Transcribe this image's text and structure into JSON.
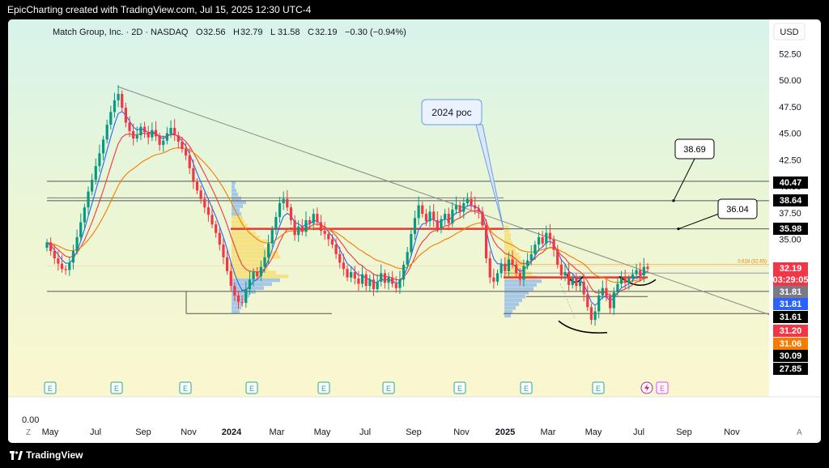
{
  "header": {
    "attribution": "EpicCharting created with TradingView.com, Jul 15, 2025 12:30 UTC-4"
  },
  "footer": {
    "brand": "TradingView"
  },
  "chart_data": {
    "type": "candlestick",
    "title": "Match Group, Inc. · 2D · NASDAQ",
    "ohlc_legend": {
      "o_label": "O",
      "o": "32.56",
      "h_label": "H",
      "h": "32.79",
      "l_label": "L",
      "l": "31.58",
      "c_label": "C",
      "c": "32.19",
      "change": "−0.30 (−0.94%)"
    },
    "currency": "USD",
    "y_ticks": [
      "52.50",
      "50.00",
      "47.50",
      "45.00",
      "42.50",
      "40.00",
      "37.50",
      "35.00"
    ],
    "x_ticks": [
      "May",
      "Jul",
      "Sep",
      "Nov",
      "2024",
      "Mar",
      "May",
      "Jul",
      "Sep",
      "Nov",
      "2025",
      "Mar",
      "May",
      "Jul",
      "Sep",
      "Nov"
    ],
    "price_tags": [
      {
        "label": "40.47",
        "color": "#000000"
      },
      {
        "label": "38.64",
        "color": "#000000"
      },
      {
        "label": "35.98",
        "color": "#000000"
      },
      {
        "label": "32.19",
        "color": "#f23645"
      },
      {
        "label": "03:29:05",
        "color": "#f23645"
      },
      {
        "label": "31.81",
        "color": "#787b86"
      },
      {
        "label": "31.81",
        "color": "#2962ff"
      },
      {
        "label": "31.61",
        "color": "#000000"
      },
      {
        "label": "31.20",
        "color": "#f23645"
      },
      {
        "label": "31.06",
        "color": "#f57c00"
      },
      {
        "label": "30.09",
        "color": "#000000"
      },
      {
        "label": "27.85",
        "color": "#000000"
      }
    ],
    "annotations": [
      {
        "text": "2024 poc"
      },
      {
        "text": "38.69"
      },
      {
        "text": "36.04"
      },
      {
        "text": "0.618 (32.65)"
      }
    ],
    "horizontal_levels": [
      40.47,
      38.64,
      35.98,
      31.61,
      30.09
    ],
    "earnings_marker": "E",
    "lower_pane_value": "0.00",
    "footer_z": "Z",
    "footer_a": "A",
    "colors": {
      "up": "#089981",
      "down": "#f23645",
      "ema_blue": "#2962ff",
      "ema_red": "#f23645",
      "ema_orange": "#f57c00"
    }
  }
}
